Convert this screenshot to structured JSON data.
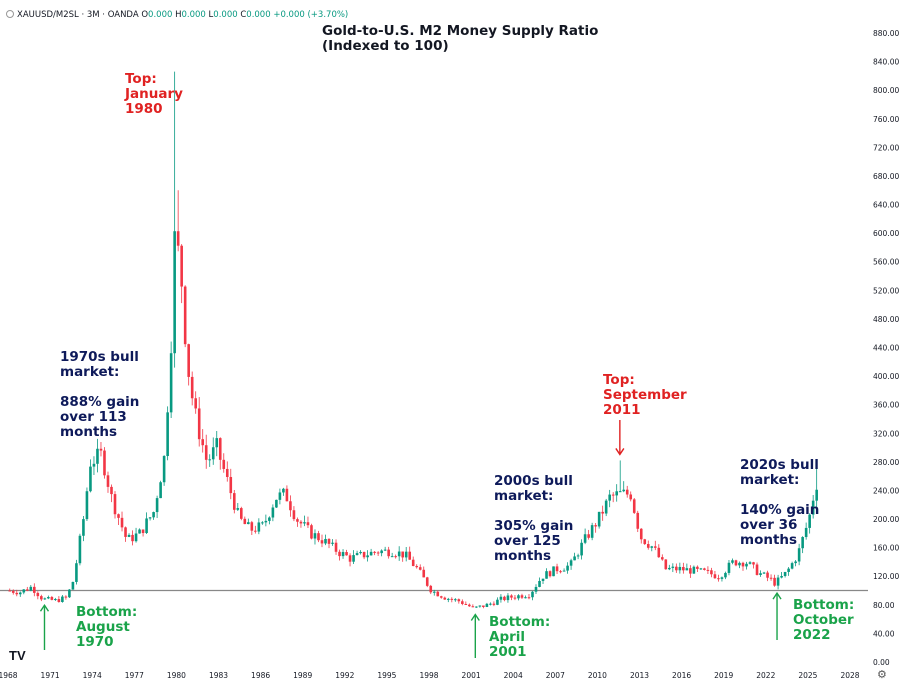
{
  "header": {
    "symbol": "XAUUSD/M2SL · 3M · OANDA",
    "o_label": "O",
    "o": "0.000",
    "h_label": "H",
    "h": "0.000",
    "l_label": "L",
    "l": "0.000",
    "c_label": "C",
    "c": "0.000",
    "change": "+0.000 (+3.70%)"
  },
  "title_line1": "Gold-to-U.S. M2 Money Supply Ratio",
  "title_line2": "(Indexed to 100)",
  "annotations": {
    "top_1980": "Top:\nJanuary\n1980",
    "bull_1970s": "1970s bull\nmarket:\n\n888% gain\nover 113\nmonths",
    "bottom_1970": "Bottom:\nAugust\n1970",
    "bull_2000s": "2000s bull\nmarket:\n\n305% gain\nover 125\nmonths",
    "bottom_2001": "Bottom:\nApril\n2001",
    "top_2011": "Top:\nSeptember\n2011",
    "bull_2020s": "2020s bull\nmarket:\n\n140% gain\nover 36\nmonths",
    "bottom_2022": "Bottom:\nOctober\n2022"
  },
  "logo": "TV",
  "colors": {
    "up": "#089981",
    "down": "#f23645",
    "red_text": "#e02222",
    "navy_text": "#0e1a5a",
    "green_text": "#1aa34a",
    "baseline": "#888888"
  },
  "chart_data": {
    "type": "candlestick",
    "title": "Gold-to-U.S. M2 Money Supply Ratio (Indexed to 100)",
    "ylim": [
      0,
      880
    ],
    "xlim": [
      1968,
      2028
    ],
    "baseline": 100,
    "y_ticks": [
      "880.00",
      "840.00",
      "800.00",
      "760.00",
      "720.00",
      "680.00",
      "640.00",
      "600.00",
      "560.00",
      "520.00",
      "480.00",
      "440.00",
      "400.00",
      "360.00",
      "320.00",
      "280.00",
      "240.00",
      "200.00",
      "160.00",
      "120.00",
      "80.00",
      "40.00",
      "0.00"
    ],
    "x_ticks": [
      "1968",
      "1971",
      "1974",
      "1977",
      "1980",
      "1983",
      "1986",
      "1989",
      "1992",
      "1995",
      "1998",
      "2001",
      "2004",
      "2007",
      "2010",
      "2013",
      "2016",
      "2019",
      "2022",
      "2025",
      "2028"
    ],
    "key_points": [
      [
        1968.0,
        100
      ],
      [
        1969.0,
        98
      ],
      [
        1969.8,
        105
      ],
      [
        1970.6,
        88
      ],
      [
        1971.5,
        86
      ],
      [
        1972.3,
        90
      ],
      [
        1972.8,
        115
      ],
      [
        1973.5,
        200
      ],
      [
        1974.0,
        280
      ],
      [
        1974.8,
        290
      ],
      [
        1975.5,
        230
      ],
      [
        1976.6,
        170
      ],
      [
        1977.5,
        180
      ],
      [
        1978.5,
        210
      ],
      [
        1979.3,
        290
      ],
      [
        1979.8,
        470
      ],
      [
        1980.0,
        590
      ],
      [
        1980.4,
        560
      ],
      [
        1980.9,
        420
      ],
      [
        1981.4,
        350
      ],
      [
        1982.3,
        280
      ],
      [
        1983.0,
        300
      ],
      [
        1983.8,
        250
      ],
      [
        1984.6,
        200
      ],
      [
        1985.4,
        185
      ],
      [
        1986.3,
        190
      ],
      [
        1987.2,
        230
      ],
      [
        1987.9,
        235
      ],
      [
        1988.7,
        200
      ],
      [
        1989.7,
        180
      ],
      [
        1990.6,
        170
      ],
      [
        1991.6,
        155
      ],
      [
        1992.5,
        145
      ],
      [
        1993.5,
        150
      ],
      [
        1994.5,
        155
      ],
      [
        1995.5,
        155
      ],
      [
        1996.4,
        150
      ],
      [
        1997.3,
        130
      ],
      [
        1998.3,
        100
      ],
      [
        1999.3,
        90
      ],
      [
        2000.3,
        85
      ],
      [
        2001.3,
        75
      ],
      [
        2002.3,
        80
      ],
      [
        2003.3,
        88
      ],
      [
        2004.3,
        92
      ],
      [
        2005.3,
        95
      ],
      [
        2006.2,
        120
      ],
      [
        2007.2,
        130
      ],
      [
        2008.2,
        135
      ],
      [
        2009.2,
        170
      ],
      [
        2010.2,
        200
      ],
      [
        2011.0,
        230
      ],
      [
        2011.7,
        235
      ],
      [
        2012.5,
        235
      ],
      [
        2013.2,
        175
      ],
      [
        2014.1,
        160
      ],
      [
        2015.0,
        130
      ],
      [
        2016.0,
        130
      ],
      [
        2016.9,
        128
      ],
      [
        2017.9,
        125
      ],
      [
        2018.8,
        120
      ],
      [
        2019.8,
        140
      ],
      [
        2020.7,
        140
      ],
      [
        2021.6,
        125
      ],
      [
        2022.5,
        115
      ],
      [
        2022.8,
        110
      ],
      [
        2023.6,
        125
      ],
      [
        2024.4,
        150
      ],
      [
        2025.2,
        200
      ],
      [
        2025.7,
        250
      ]
    ],
    "peaks": {
      "1980": {
        "high": 826,
        "close": 590
      },
      "2011": {
        "high": 282,
        "close": 240
      },
      "2025": {
        "high": 277,
        "close": 250
      }
    },
    "lows": {
      "1970": 85,
      "2001": 72,
      "2022": 102
    }
  }
}
